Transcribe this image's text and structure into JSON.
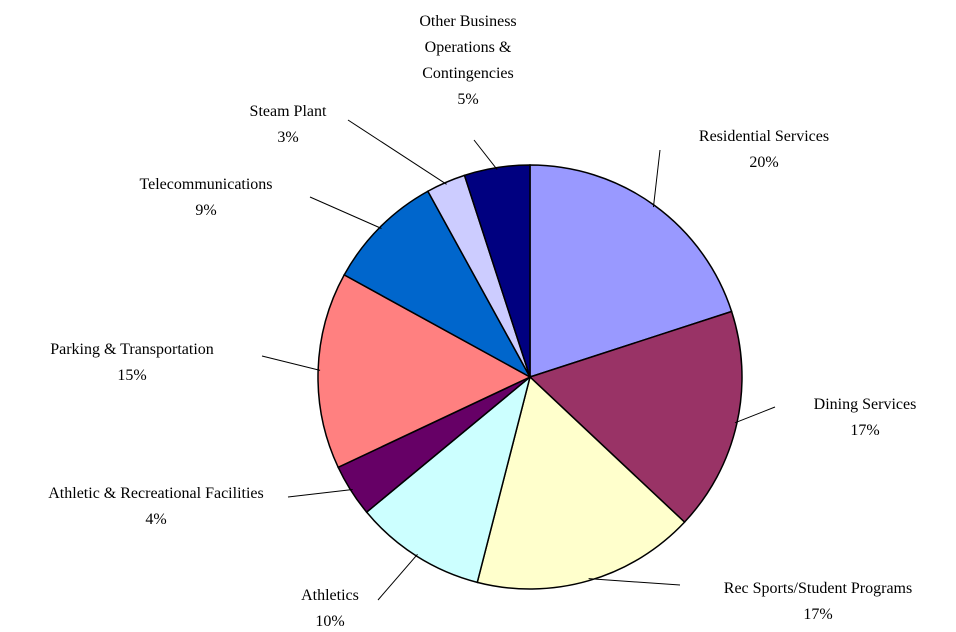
{
  "chart_data": {
    "type": "pie",
    "categories": [
      "Residential Services",
      "Dining Services",
      "Rec Sports/Student Programs",
      "Athletics",
      "Athletic & Recreational Facilities",
      "Parking & Transportation",
      "Telecommunications",
      "Steam Plant",
      "Other Business Operations & Contingencies"
    ],
    "values": [
      20,
      17,
      17,
      10,
      4,
      15,
      9,
      3,
      5
    ],
    "value_labels": [
      "20%",
      "17%",
      "17%",
      "10%",
      "4%",
      "15%",
      "9%",
      "3%",
      "5%"
    ],
    "colors": [
      "#9999ff",
      "#993366",
      "#ffffcc",
      "#ccffff",
      "#660066",
      "#ff8080",
      "#0066cc",
      "#ccccff",
      "#000080"
    ]
  }
}
